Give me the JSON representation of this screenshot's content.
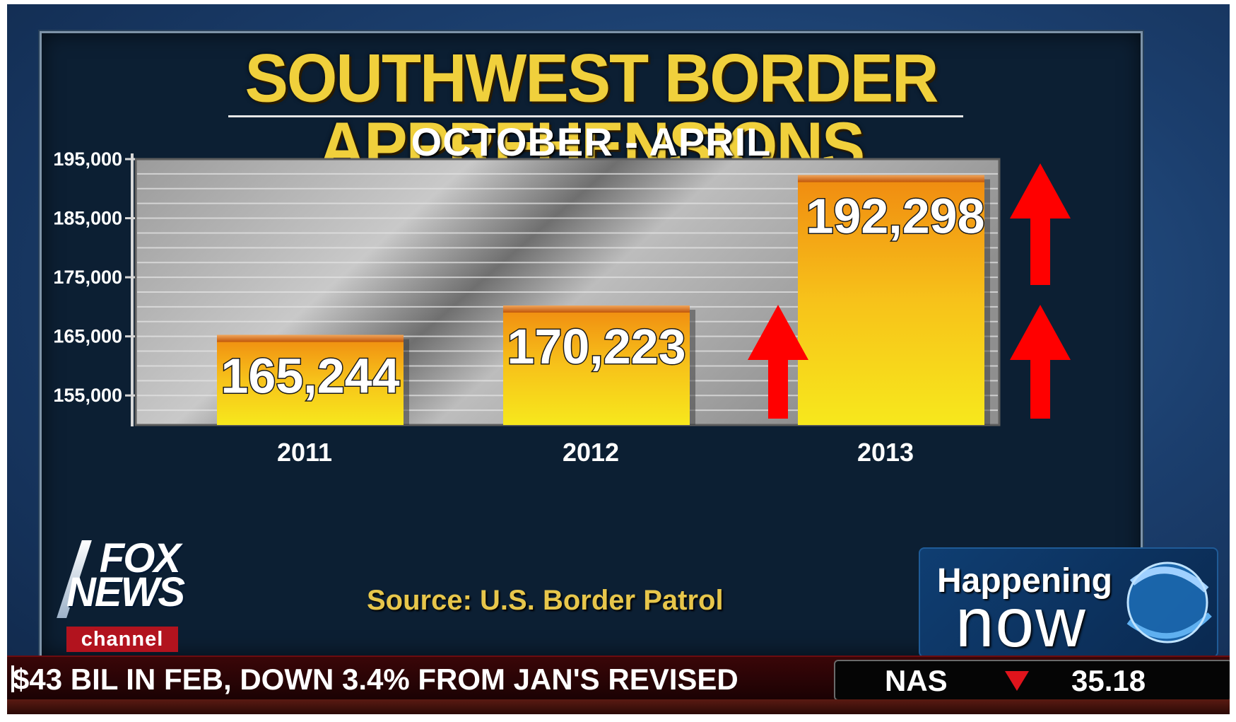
{
  "chart_data": {
    "type": "bar",
    "title": "SOUTHWEST BORDER APPREHENSIONS",
    "subtitle": "OCTOBER - APRIL",
    "categories": [
      "2011",
      "2012",
      "2013"
    ],
    "values": [
      165244,
      170223,
      192298
    ],
    "value_labels": [
      "165,244",
      "170,223",
      "192,298"
    ],
    "ylim": [
      150000,
      195000
    ],
    "yticks": [
      155000,
      165000,
      175000,
      185000,
      195000
    ],
    "ytick_labels": [
      "155,000",
      "165,000",
      "175,000",
      "185,000",
      "195,000"
    ],
    "grid": true,
    "colors": {
      "bar_top": "#f08a10",
      "bar_bottom": "#f7e31a",
      "arrow": "#ff0000"
    }
  },
  "source": "Source: U.S. Border Patrol",
  "logo": {
    "line1": "FOX",
    "line2": "NEWS",
    "line3": "channel"
  },
  "show_badge": {
    "line1": "Happening",
    "line2": "now"
  },
  "ticker": {
    "headline": "$43 BIL IN FEB, DOWN 3.4% FROM JAN'S REVISED",
    "symbol": "NAS",
    "value": "35.18",
    "direction": "down"
  }
}
